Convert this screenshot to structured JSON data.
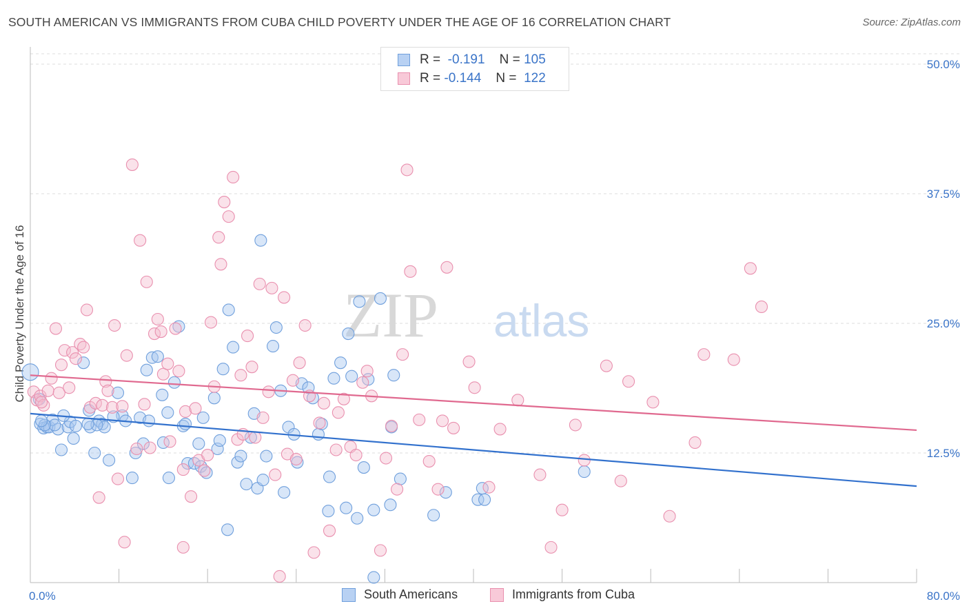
{
  "title": "SOUTH AMERICAN VS IMMIGRANTS FROM CUBA CHILD POVERTY UNDER THE AGE OF 16 CORRELATION CHART",
  "source": "Source: ZipAtlas.com",
  "watermark": {
    "zip": "ZIP",
    "atlas": "atlas"
  },
  "legend_top": [
    {
      "r_label": "R =",
      "r_value": "-0.191",
      "n_label": "N =",
      "n_value": "105"
    },
    {
      "r_label": "R =",
      "r_value": "-0.144",
      "n_label": "N =",
      "n_value": "122"
    }
  ],
  "colors": {
    "blue_fill": "#a9c7ef",
    "blue_stroke": "#6f9fdc",
    "blue_line": "#3271cd",
    "pink_fill": "#f5bfd1",
    "pink_stroke": "#e98fae",
    "pink_line": "#e0698f",
    "tick_label": "#3a74c8",
    "grid": "#dcdcdc"
  },
  "chart_data": {
    "type": "scatter",
    "xlabel": "",
    "ylabel": "Child Poverty Under the Age of 16",
    "xlim": [
      0,
      80
    ],
    "ylim": [
      0,
      51
    ],
    "x_tick_labels": [
      "0.0%",
      "80.0%"
    ],
    "y_ticks": [
      12.5,
      25.0,
      37.5,
      50.0
    ],
    "y_tick_labels": [
      "12.5%",
      "25.0%",
      "37.5%",
      "50.0%"
    ],
    "grid": "horizontal dashed",
    "legend_placement": "bottom-center",
    "series": [
      {
        "name": "South Americans",
        "trend": {
          "x": [
            0,
            80
          ],
          "y": [
            16.3,
            9.3
          ]
        },
        "points": [
          [
            0.0,
            20.3
          ],
          [
            0.8,
            17.7
          ],
          [
            0.9,
            15.3
          ],
          [
            1.2,
            14.9
          ],
          [
            1.5,
            15.0
          ],
          [
            1.7,
            15.0
          ],
          [
            2.0,
            15.7
          ],
          [
            2.5,
            14.8
          ],
          [
            2.8,
            12.8
          ],
          [
            3.4,
            15.0
          ],
          [
            3.6,
            15.5
          ],
          [
            3.9,
            13.9
          ],
          [
            4.1,
            15.1
          ],
          [
            4.8,
            21.2
          ],
          [
            5.3,
            16.6
          ],
          [
            5.4,
            15.0
          ],
          [
            5.8,
            12.5
          ],
          [
            6.2,
            15.6
          ],
          [
            6.5,
            15.3
          ],
          [
            6.7,
            15.0
          ],
          [
            7.1,
            11.8
          ],
          [
            7.9,
            18.3
          ],
          [
            8.3,
            16.1
          ],
          [
            8.6,
            15.6
          ],
          [
            9.5,
            12.5
          ],
          [
            9.9,
            15.9
          ],
          [
            10.2,
            13.4
          ],
          [
            10.5,
            20.5
          ],
          [
            10.7,
            15.6
          ],
          [
            11.0,
            21.7
          ],
          [
            11.5,
            21.8
          ],
          [
            11.9,
            18.1
          ],
          [
            12.0,
            13.5
          ],
          [
            12.4,
            16.4
          ],
          [
            12.5,
            10.1
          ],
          [
            13.0,
            19.3
          ],
          [
            13.4,
            24.7
          ],
          [
            13.8,
            15.1
          ],
          [
            14.0,
            15.3
          ],
          [
            14.2,
            11.5
          ],
          [
            14.8,
            11.5
          ],
          [
            15.2,
            13.4
          ],
          [
            15.4,
            11.2
          ],
          [
            15.6,
            15.9
          ],
          [
            15.9,
            10.6
          ],
          [
            16.6,
            17.8
          ],
          [
            16.9,
            12.9
          ],
          [
            17.1,
            13.7
          ],
          [
            17.4,
            20.6
          ],
          [
            17.8,
            5.1
          ],
          [
            17.9,
            26.3
          ],
          [
            18.3,
            22.7
          ],
          [
            18.7,
            11.6
          ],
          [
            19.0,
            12.2
          ],
          [
            19.5,
            9.5
          ],
          [
            19.9,
            14.0
          ],
          [
            20.2,
            16.3
          ],
          [
            20.5,
            9.1
          ],
          [
            20.8,
            33.0
          ],
          [
            21.0,
            9.9
          ],
          [
            21.3,
            12.2
          ],
          [
            21.9,
            22.8
          ],
          [
            22.2,
            24.6
          ],
          [
            22.6,
            18.5
          ],
          [
            22.9,
            8.7
          ],
          [
            23.3,
            15.0
          ],
          [
            23.8,
            14.3
          ],
          [
            24.1,
            11.6
          ],
          [
            24.5,
            19.2
          ],
          [
            25.1,
            18.8
          ],
          [
            25.5,
            17.8
          ],
          [
            26.0,
            14.3
          ],
          [
            26.3,
            15.3
          ],
          [
            26.9,
            6.9
          ],
          [
            27.0,
            10.2
          ],
          [
            27.4,
            19.7
          ],
          [
            28.0,
            21.2
          ],
          [
            28.5,
            7.2
          ],
          [
            28.7,
            24.0
          ],
          [
            29.0,
            19.9
          ],
          [
            29.5,
            6.2
          ],
          [
            29.7,
            27.1
          ],
          [
            30.1,
            11.1
          ],
          [
            30.5,
            19.6
          ],
          [
            31.0,
            7.0
          ],
          [
            31.0,
            0.5
          ],
          [
            31.6,
            27.4
          ],
          [
            32.5,
            7.5
          ],
          [
            32.8,
            20.0
          ],
          [
            32.6,
            15.0
          ],
          [
            33.4,
            10.0
          ],
          [
            36.4,
            6.5
          ],
          [
            37.5,
            8.7
          ],
          [
            40.4,
            8.0
          ],
          [
            40.8,
            9.1
          ],
          [
            41.0,
            8.0
          ],
          [
            50.0,
            10.7
          ],
          [
            9.2,
            10.1
          ],
          [
            6.0,
            15.2
          ],
          [
            5.2,
            15.3
          ],
          [
            3.0,
            16.1
          ],
          [
            2.2,
            15.2
          ],
          [
            1.3,
            15.2
          ],
          [
            1.0,
            15.6
          ],
          [
            7.5,
            16.0
          ]
        ]
      },
      {
        "name": "Immigrants from Cuba",
        "trend": {
          "x": [
            0,
            80
          ],
          "y": [
            20.0,
            14.7
          ]
        },
        "points": [
          [
            0.3,
            18.4
          ],
          [
            0.6,
            17.6
          ],
          [
            0.9,
            18.0
          ],
          [
            1.2,
            17.1
          ],
          [
            1.6,
            18.5
          ],
          [
            1.9,
            19.7
          ],
          [
            2.3,
            24.5
          ],
          [
            2.6,
            18.3
          ],
          [
            2.8,
            21.0
          ],
          [
            3.1,
            22.4
          ],
          [
            3.5,
            18.8
          ],
          [
            3.8,
            22.2
          ],
          [
            4.1,
            21.6
          ],
          [
            4.5,
            23.0
          ],
          [
            4.8,
            22.7
          ],
          [
            5.1,
            26.3
          ],
          [
            5.4,
            16.9
          ],
          [
            5.9,
            17.3
          ],
          [
            6.2,
            8.2
          ],
          [
            6.5,
            17.1
          ],
          [
            6.8,
            19.4
          ],
          [
            7.0,
            18.5
          ],
          [
            7.4,
            16.9
          ],
          [
            7.6,
            24.8
          ],
          [
            7.9,
            10.0
          ],
          [
            8.3,
            17.0
          ],
          [
            8.5,
            3.9
          ],
          [
            8.7,
            21.9
          ],
          [
            9.2,
            40.3
          ],
          [
            9.6,
            12.9
          ],
          [
            9.9,
            33.0
          ],
          [
            10.3,
            17.2
          ],
          [
            10.5,
            29.0
          ],
          [
            10.8,
            13.0
          ],
          [
            11.2,
            24.0
          ],
          [
            11.5,
            25.4
          ],
          [
            11.8,
            24.2
          ],
          [
            12.0,
            20.1
          ],
          [
            12.4,
            21.1
          ],
          [
            12.6,
            13.6
          ],
          [
            13.1,
            24.5
          ],
          [
            13.4,
            20.4
          ],
          [
            13.8,
            10.9
          ],
          [
            14.0,
            16.5
          ],
          [
            14.5,
            8.3
          ],
          [
            14.9,
            16.8
          ],
          [
            15.2,
            11.8
          ],
          [
            15.7,
            10.8
          ],
          [
            16.0,
            12.3
          ],
          [
            16.3,
            25.1
          ],
          [
            16.6,
            18.9
          ],
          [
            17.0,
            33.3
          ],
          [
            17.2,
            30.7
          ],
          [
            17.5,
            36.7
          ],
          [
            17.9,
            35.3
          ],
          [
            18.3,
            39.1
          ],
          [
            18.7,
            13.8
          ],
          [
            19.0,
            20.0
          ],
          [
            19.2,
            14.3
          ],
          [
            19.6,
            23.8
          ],
          [
            20.0,
            20.8
          ],
          [
            20.3,
            14.0
          ],
          [
            20.7,
            28.8
          ],
          [
            21.0,
            15.9
          ],
          [
            21.5,
            18.4
          ],
          [
            21.8,
            28.4
          ],
          [
            22.1,
            10.4
          ],
          [
            22.5,
            0.6
          ],
          [
            22.9,
            27.5
          ],
          [
            23.2,
            12.4
          ],
          [
            23.7,
            19.5
          ],
          [
            24.0,
            11.9
          ],
          [
            24.3,
            21.2
          ],
          [
            24.8,
            24.8
          ],
          [
            25.2,
            18.0
          ],
          [
            25.6,
            2.9
          ],
          [
            26.1,
            15.4
          ],
          [
            26.5,
            17.3
          ],
          [
            27.0,
            5.0
          ],
          [
            27.6,
            12.8
          ],
          [
            28.3,
            17.7
          ],
          [
            28.9,
            13.1
          ],
          [
            29.4,
            12.3
          ],
          [
            30.0,
            19.3
          ],
          [
            30.4,
            20.4
          ],
          [
            30.8,
            18.0
          ],
          [
            31.6,
            3.1
          ],
          [
            32.1,
            12.0
          ],
          [
            32.6,
            15.1
          ],
          [
            33.1,
            9.0
          ],
          [
            33.6,
            22.0
          ],
          [
            34.0,
            39.8
          ],
          [
            34.3,
            30.0
          ],
          [
            35.1,
            15.7
          ],
          [
            36.0,
            11.7
          ],
          [
            36.8,
            9.0
          ],
          [
            37.2,
            15.6
          ],
          [
            37.6,
            30.4
          ],
          [
            38.2,
            14.9
          ],
          [
            39.6,
            21.3
          ],
          [
            40.1,
            18.8
          ],
          [
            41.4,
            9.2
          ],
          [
            42.4,
            14.8
          ],
          [
            44.0,
            17.6
          ],
          [
            46.0,
            10.4
          ],
          [
            47.0,
            3.4
          ],
          [
            48.0,
            7.0
          ],
          [
            49.2,
            15.2
          ],
          [
            50.0,
            11.8
          ],
          [
            52.0,
            20.9
          ],
          [
            53.3,
            9.8
          ],
          [
            54.0,
            19.4
          ],
          [
            56.2,
            17.4
          ],
          [
            57.7,
            6.4
          ],
          [
            60.0,
            13.5
          ],
          [
            60.8,
            22.0
          ],
          [
            63.5,
            21.5
          ],
          [
            65.0,
            30.3
          ],
          [
            66.0,
            26.6
          ],
          [
            13.8,
            3.4
          ],
          [
            1.0,
            17.4
          ],
          [
            27.8,
            16.4
          ]
        ]
      }
    ]
  },
  "bottom_legend": [
    "South Americans",
    "Immigrants from Cuba"
  ]
}
